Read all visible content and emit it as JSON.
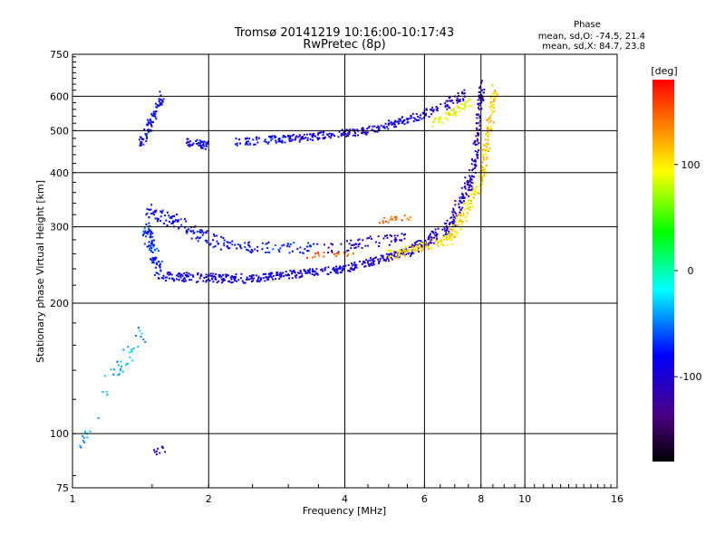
{
  "chart_data": {
    "type": "scatter",
    "title": "Tromsø 20141219 10:16:00-10:17:43",
    "subtitle": "RwPretec (8p)",
    "xlabel": "Frequency [MHz]",
    "ylabel": "Stationary phase Virtual Height [km]",
    "x_scale": "log",
    "y_scale": "log",
    "xlim": [
      1,
      16
    ],
    "ylim": [
      75,
      750
    ],
    "x_ticks": [
      1,
      2,
      4,
      6,
      8,
      10,
      16
    ],
    "y_ticks": [
      75,
      100,
      200,
      300,
      400,
      500,
      600,
      750
    ],
    "grid": true,
    "phase_info": {
      "heading": "Phase",
      "line_o": "mean, sd,O: -74.5, 21.4",
      "line_x": "mean, sd,X:  84.7, 23.8"
    },
    "colorbar": {
      "label": "[deg]",
      "range": [
        -180,
        180
      ],
      "ticks": [
        100,
        0,
        -100
      ],
      "colormap": "rainbow"
    },
    "traces": [
      {
        "from": [
          1.55,
          230
        ],
        "to": [
          2.5,
          228
        ],
        "phase": -95,
        "n": 140,
        "jit": 0.025
      },
      {
        "from": [
          2.5,
          228
        ],
        "to": [
          4.0,
          240
        ],
        "phase": -95,
        "n": 150,
        "jit": 0.02
      },
      {
        "from": [
          4.0,
          240
        ],
        "to": [
          5.5,
          262
        ],
        "phase": -100,
        "n": 110,
        "jit": 0.02
      },
      {
        "from": [
          5.5,
          262
        ],
        "to": [
          6.8,
          300
        ],
        "phase": -105,
        "n": 90,
        "jit": 0.03
      },
      {
        "from": [
          6.8,
          300
        ],
        "to": [
          7.7,
          400
        ],
        "phase": -110,
        "n": 90,
        "jit": 0.035
      },
      {
        "from": [
          7.7,
          400
        ],
        "to": [
          8.05,
          640
        ],
        "phase": -115,
        "n": 90,
        "jit": 0.03
      },
      {
        "from": [
          5.0,
          258
        ],
        "to": [
          6.8,
          280
        ],
        "phase": 105,
        "n": 90,
        "jit": 0.025
      },
      {
        "from": [
          6.8,
          280
        ],
        "to": [
          8.0,
          380
        ],
        "phase": 105,
        "n": 90,
        "jit": 0.035
      },
      {
        "from": [
          8.0,
          380
        ],
        "to": [
          8.6,
          620
        ],
        "phase": 110,
        "n": 110,
        "jit": 0.03
      },
      {
        "from": [
          1.8,
          470
        ],
        "to": [
          2.0,
          462
        ],
        "phase": -90,
        "n": 40,
        "jit": 0.02
      },
      {
        "from": [
          2.3,
          470
        ],
        "to": [
          3.0,
          480
        ],
        "phase": -80,
        "n": 60,
        "jit": 0.02
      },
      {
        "from": [
          3.0,
          478
        ],
        "to": [
          4.5,
          500
        ],
        "phase": -100,
        "n": 110,
        "jit": 0.02
      },
      {
        "from": [
          4.5,
          500
        ],
        "to": [
          6.0,
          545
        ],
        "phase": -95,
        "n": 80,
        "jit": 0.02
      },
      {
        "from": [
          6.0,
          545
        ],
        "to": [
          7.5,
          610
        ],
        "phase": -110,
        "n": 60,
        "jit": 0.025
      },
      {
        "from": [
          6.3,
          520
        ],
        "to": [
          7.6,
          580
        ],
        "phase": 95,
        "n": 55,
        "jit": 0.02
      },
      {
        "from": [
          1.42,
          470
        ],
        "to": [
          1.58,
          600
        ],
        "phase": -85,
        "n": 80,
        "jit": 0.03
      },
      {
        "from": [
          1.45,
          300
        ],
        "to": [
          1.55,
          240
        ],
        "phase": -70,
        "n": 90,
        "jit": 0.04
      },
      {
        "from": [
          1.45,
          330
        ],
        "to": [
          2.2,
          270
        ],
        "phase": -85,
        "n": 110,
        "jit": 0.04
      },
      {
        "from": [
          2.2,
          270
        ],
        "to": [
          3.5,
          268
        ],
        "phase": -75,
        "n": 70,
        "jit": 0.03
      },
      {
        "from": [
          3.5,
          265
        ],
        "to": [
          5.5,
          285
        ],
        "phase": -110,
        "n": 60,
        "jit": 0.03
      },
      {
        "from": [
          4.8,
          310
        ],
        "to": [
          5.6,
          315
        ],
        "phase": 150,
        "n": 20,
        "jit": 0.015
      },
      {
        "from": [
          3.3,
          258
        ],
        "to": [
          4.3,
          260
        ],
        "phase": 150,
        "n": 20,
        "jit": 0.015
      },
      {
        "from": [
          1.15,
          120
        ],
        "to": [
          1.45,
          175
        ],
        "phase": -40,
        "n": 35,
        "jit": 0.05
      },
      {
        "from": [
          1.02,
          92
        ],
        "to": [
          1.12,
          105
        ],
        "phase": -40,
        "n": 12,
        "jit": 0.04
      },
      {
        "from": [
          1.5,
          90
        ],
        "to": [
          1.6,
          92
        ],
        "phase": -105,
        "n": 10,
        "jit": 0.02
      }
    ]
  }
}
